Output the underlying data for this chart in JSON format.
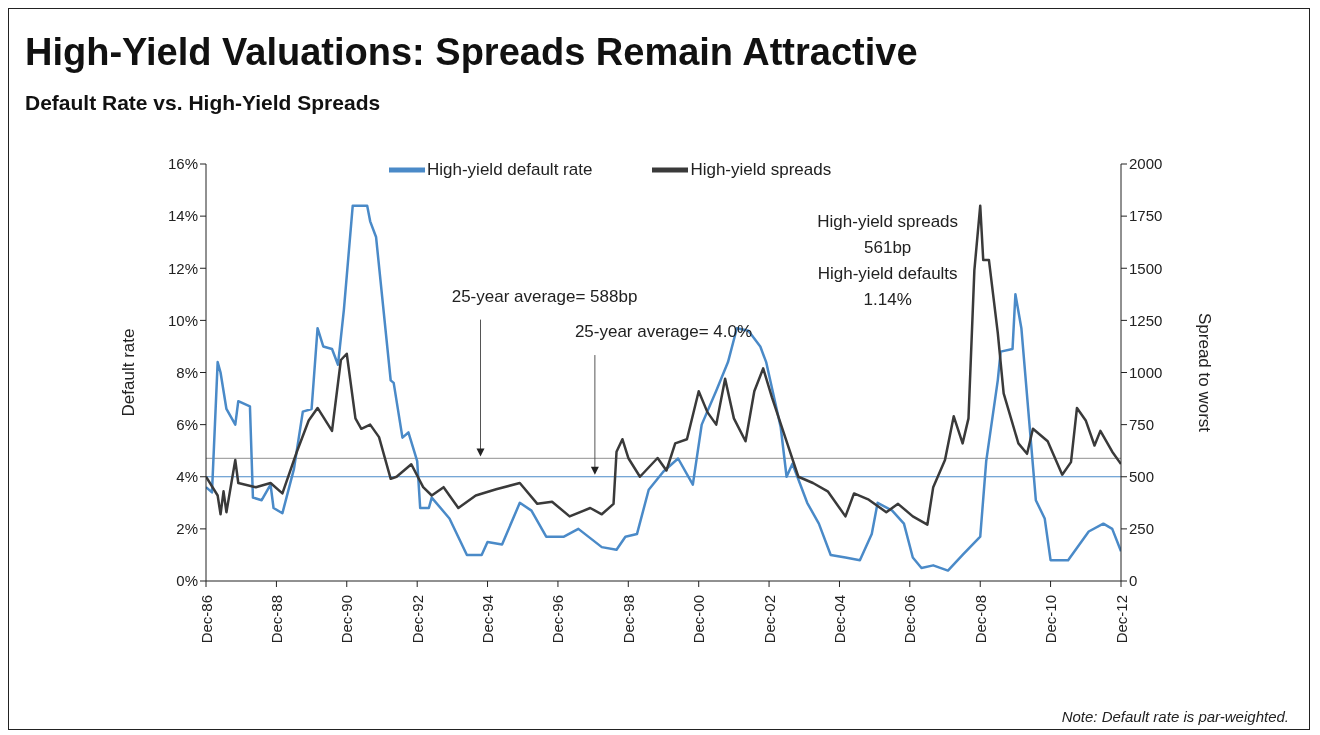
{
  "chart_data": {
    "type": "line",
    "title": "High-Yield Valuations: Spreads Remain Attractive",
    "subtitle": "Default Rate vs. High-Yield Spreads",
    "ylabel": "Default rate",
    "y2label": "Spread to worst",
    "xlim": [
      "1986-12",
      "2012-12"
    ],
    "xticks": [
      {
        "value": "1986-12",
        "label": "Dec-86"
      },
      {
        "value": "1988-12",
        "label": "Dec-88"
      },
      {
        "value": "1990-12",
        "label": "Dec-90"
      },
      {
        "value": "1992-12",
        "label": "Dec-92"
      },
      {
        "value": "1994-12",
        "label": "Dec-94"
      },
      {
        "value": "1996-12",
        "label": "Dec-96"
      },
      {
        "value": "1998-12",
        "label": "Dec-98"
      },
      {
        "value": "2000-12",
        "label": "Dec-00"
      },
      {
        "value": "2002-12",
        "label": "Dec-02"
      },
      {
        "value": "2004-12",
        "label": "Dec-04"
      },
      {
        "value": "2006-12",
        "label": "Dec-06"
      },
      {
        "value": "2008-12",
        "label": "Dec-08"
      },
      {
        "value": "2010-12",
        "label": "Dec-10"
      },
      {
        "value": "2012-12",
        "label": "Dec-12"
      }
    ],
    "ylim": [
      0,
      16
    ],
    "yticks": [
      {
        "value": 0,
        "label": "0%"
      },
      {
        "value": 2,
        "label": "2%"
      },
      {
        "value": 4,
        "label": "4%"
      },
      {
        "value": 6,
        "label": "6%"
      },
      {
        "value": 8,
        "label": "8%"
      },
      {
        "value": 10,
        "label": "10%"
      },
      {
        "value": 12,
        "label": "12%"
      },
      {
        "value": 14,
        "label": "14%"
      },
      {
        "value": 16,
        "label": "16%"
      }
    ],
    "y2lim": [
      0,
      2000
    ],
    "y2ticks": [
      0,
      250,
      500,
      750,
      1000,
      1250,
      1500,
      1750,
      2000
    ],
    "grid": false,
    "legend": "top",
    "marker": "none",
    "line_style": "solid",
    "series": [
      {
        "name": "High-yield default rate",
        "color": "#4a8ac8",
        "axis": "y",
        "x": [
          "1986-12",
          "1987-02",
          "1987-04",
          "1987-05",
          "1987-07",
          "1987-10",
          "1987-11",
          "1988-03",
          "1988-04",
          "1988-07",
          "1988-10",
          "1988-11",
          "1989-02",
          "1989-06",
          "1989-09",
          "1989-12",
          "1990-02",
          "1990-04",
          "1990-07",
          "1990-09",
          "1990-11",
          "1991-02",
          "1991-07",
          "1991-08",
          "1991-10",
          "1992-03",
          "1992-04",
          "1992-07",
          "1992-09",
          "1992-12",
          "1993-01",
          "1993-04",
          "1993-05",
          "1993-11",
          "1994-05",
          "1994-10",
          "1994-12",
          "1995-05",
          "1995-11",
          "1996-03",
          "1996-08",
          "1997-02",
          "1997-07",
          "1998-03",
          "1998-08",
          "1998-11",
          "1999-03",
          "1999-07",
          "1999-12",
          "2000-05",
          "2000-10",
          "2001-01",
          "2001-06",
          "2001-10",
          "2002-01",
          "2002-05",
          "2002-09",
          "2002-11",
          "2003-04",
          "2003-06",
          "2003-08",
          "2004-01",
          "2004-05",
          "2004-09",
          "2005-02",
          "2005-07",
          "2005-11",
          "2006-01",
          "2006-06",
          "2006-10",
          "2007-01",
          "2007-04",
          "2007-08",
          "2008-01",
          "2008-06",
          "2008-12",
          "2009-02",
          "2009-06",
          "2009-07",
          "2009-11",
          "2009-12",
          "2010-02",
          "2010-07",
          "2010-10",
          "2010-12",
          "2011-06",
          "2012-01",
          "2012-06",
          "2012-09",
          "2012-12"
        ],
        "values": [
          3.6,
          3.4,
          8.4,
          8.0,
          6.6,
          6.0,
          6.9,
          6.7,
          3.2,
          3.1,
          3.7,
          2.8,
          2.6,
          4.3,
          6.5,
          6.6,
          9.7,
          9.0,
          8.9,
          8.3,
          10.4,
          14.4,
          14.4,
          13.8,
          13.2,
          7.7,
          7.6,
          5.5,
          5.7,
          4.6,
          2.8,
          2.8,
          3.2,
          2.4,
          1.0,
          1.0,
          1.5,
          1.4,
          3.0,
          2.7,
          1.7,
          1.7,
          2.0,
          1.3,
          1.2,
          1.7,
          1.8,
          3.5,
          4.2,
          4.7,
          3.7,
          6.0,
          7.3,
          8.4,
          9.7,
          9.6,
          9.0,
          8.4,
          5.9,
          4.0,
          4.5,
          3.0,
          2.2,
          1.0,
          0.9,
          0.8,
          1.8,
          3.0,
          2.7,
          2.2,
          0.9,
          0.5,
          0.6,
          0.4,
          1.0,
          1.7,
          4.6,
          7.7,
          8.8,
          8.9,
          11.0,
          9.7,
          3.1,
          2.4,
          0.8,
          0.8,
          1.9,
          2.2,
          2.0,
          1.14
        ]
      },
      {
        "name": "High-yield spreads",
        "color": "#3a3a3a",
        "axis": "y2",
        "x": [
          "1986-12",
          "1987-04",
          "1987-05",
          "1987-06",
          "1987-07",
          "1987-10",
          "1987-11",
          "1988-05",
          "1988-10",
          "1989-02",
          "1989-07",
          "1989-11",
          "1990-02",
          "1990-07",
          "1990-10",
          "1990-12",
          "1991-03",
          "1991-05",
          "1991-08",
          "1991-11",
          "1992-03",
          "1992-05",
          "1992-10",
          "1993-02",
          "1993-05",
          "1993-09",
          "1994-02",
          "1994-08",
          "1995-03",
          "1995-11",
          "1996-05",
          "1996-10",
          "1997-04",
          "1997-11",
          "1998-03",
          "1998-07",
          "1998-08",
          "1998-10",
          "1998-12",
          "1999-04",
          "1999-10",
          "2000-01",
          "2000-04",
          "2000-08",
          "2000-12",
          "2001-03",
          "2001-06",
          "2001-09",
          "2001-12",
          "2002-04",
          "2002-07",
          "2002-10",
          "2003-01",
          "2003-06",
          "2003-10",
          "2004-03",
          "2004-08",
          "2005-02",
          "2005-05",
          "2005-10",
          "2006-04",
          "2006-08",
          "2007-01",
          "2007-06",
          "2007-08",
          "2007-12",
          "2008-03",
          "2008-06",
          "2008-08",
          "2008-10",
          "2008-12",
          "2009-01",
          "2009-03",
          "2009-06",
          "2009-08",
          "2010-01",
          "2010-04",
          "2010-06",
          "2010-11",
          "2011-04",
          "2011-07",
          "2011-09",
          "2011-12",
          "2012-03",
          "2012-05",
          "2012-09",
          "2012-12"
        ],
        "values": [
          500,
          410,
          320,
          430,
          330,
          580,
          470,
          450,
          470,
          420,
          620,
          770,
          830,
          720,
          1060,
          1090,
          780,
          730,
          750,
          690,
          490,
          500,
          560,
          450,
          410,
          450,
          350,
          410,
          440,
          470,
          370,
          380,
          310,
          350,
          320,
          370,
          620,
          680,
          590,
          500,
          590,
          530,
          660,
          680,
          910,
          810,
          750,
          970,
          780,
          670,
          910,
          1020,
          880,
          670,
          500,
          470,
          430,
          310,
          420,
          390,
          330,
          370,
          310,
          270,
          450,
          580,
          790,
          660,
          780,
          1490,
          1800,
          1540,
          1540,
          1190,
          900,
          660,
          610,
          730,
          670,
          510,
          570,
          830,
          770,
          650,
          720,
          620,
          561
        ]
      }
    ],
    "ref_lines": [
      {
        "axis": "y2",
        "value": 588,
        "label": "25-year average= 588bp",
        "color": "#a6a6a6"
      },
      {
        "axis": "y",
        "value": 4.0,
        "label": "25-year average= 4.0%",
        "color": "#4a8ac8"
      }
    ],
    "annotations": [
      "High-yield spreads\n561bp\nHigh-yield defaults\n1.14%",
      "Note: Default rate is par-weighted."
    ]
  }
}
